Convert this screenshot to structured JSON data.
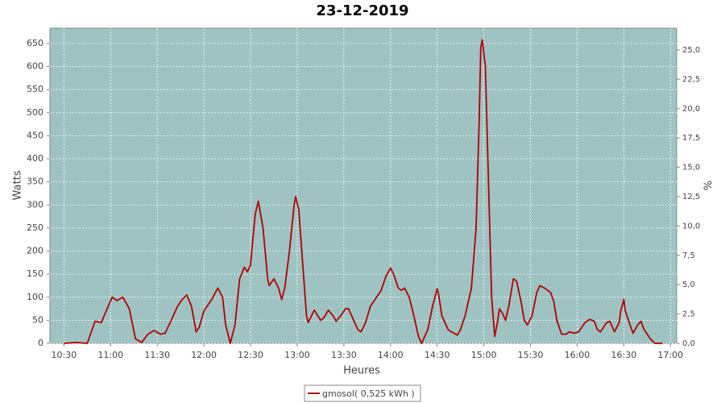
{
  "chart_data": {
    "type": "line",
    "title": "23-12-2019",
    "xlabel": "Heures",
    "ylabel": "Watts",
    "y2label": "%",
    "x": [
      "10:30",
      "10:38",
      "10:45",
      "10:50",
      "10:54",
      "11:01",
      "11:04",
      "11:08",
      "11:12",
      "11:16",
      "11:20",
      "11:24",
      "11:28",
      "11:32",
      "11:35",
      "11:39",
      "11:43",
      "11:46",
      "11:49",
      "11:52",
      "11:55",
      "11:57",
      "12:00",
      "12:03",
      "12:05",
      "12:09",
      "12:12",
      "12:14",
      "12:17",
      "12:20",
      "12:23",
      "12:26",
      "12:28",
      "12:30",
      "12:33",
      "12:35",
      "12:38",
      "12:41",
      "12:42",
      "12:45",
      "12:48",
      "12:50",
      "12:52",
      "12:55",
      "12:58",
      "12:59",
      "13:01",
      "13:04",
      "13:06",
      "13:07",
      "13:11",
      "13:15",
      "13:17",
      "13:20",
      "13:23",
      "13:25",
      "13:28",
      "13:31",
      "13:33",
      "13:35",
      "13:39",
      "13:41",
      "13:44",
      "13:47",
      "13:51",
      "13:54",
      "13:57",
      "14:00",
      "14:02",
      "14:05",
      "14:07",
      "14:09",
      "14:12",
      "14:15",
      "14:18",
      "14:20",
      "14:24",
      "14:27",
      "14:30",
      "14:31",
      "14:33",
      "14:37",
      "14:39",
      "14:43",
      "14:45",
      "14:48",
      "14:52",
      "14:55",
      "14:57",
      "14:58",
      "14:59",
      "15:01",
      "15:03",
      "15:05",
      "15:07",
      "15:09",
      "15:10",
      "15:12",
      "15:14",
      "15:16",
      "15:19",
      "15:21",
      "15:24",
      "15:26",
      "15:28",
      "15:31",
      "15:34",
      "15:36",
      "15:39",
      "15:43",
      "15:45",
      "15:47",
      "15:50",
      "15:53",
      "15:55",
      "15:58",
      "16:01",
      "16:05",
      "16:08",
      "16:11",
      "16:13",
      "16:15",
      "16:19",
      "16:21",
      "16:24",
      "16:27",
      "16:28",
      "16:30",
      "16:31",
      "16:34",
      "16:36",
      "16:39",
      "16:41",
      "16:43",
      "16:47",
      "16:50",
      "16:55"
    ],
    "series": [
      {
        "name": "gmosol( 0,525 kWh )",
        "color": "#b00000",
        "values": [
          0,
          2,
          0,
          48,
          45,
          100,
          93,
          100,
          75,
          10,
          2,
          20,
          28,
          20,
          22,
          50,
          80,
          95,
          105,
          80,
          25,
          35,
          70,
          85,
          95,
          120,
          100,
          40,
          0,
          40,
          140,
          165,
          155,
          170,
          280,
          308,
          250,
          140,
          125,
          140,
          120,
          95,
          120,
          200,
          300,
          318,
          290,
          150,
          60,
          45,
          72,
          50,
          55,
          72,
          60,
          48,
          60,
          75,
          75,
          60,
          30,
          25,
          45,
          80,
          100,
          115,
          145,
          163,
          150,
          120,
          115,
          120,
          100,
          60,
          15,
          0,
          30,
          80,
          118,
          105,
          60,
          30,
          25,
          18,
          30,
          60,
          120,
          250,
          480,
          640,
          658,
          600,
          350,
          100,
          15,
          50,
          75,
          65,
          50,
          80,
          140,
          135,
          90,
          50,
          40,
          60,
          110,
          125,
          120,
          110,
          90,
          50,
          20,
          20,
          25,
          22,
          25,
          45,
          52,
          48,
          30,
          25,
          45,
          48,
          25,
          45,
          70,
          95,
          70,
          40,
          22,
          40,
          48,
          30,
          10,
          0,
          0
        ]
      }
    ],
    "xlim": [
      "10:21",
      "17:04"
    ],
    "xticks": [
      "10:30",
      "11:00",
      "11:30",
      "12:00",
      "12:30",
      "13:00",
      "13:30",
      "14:00",
      "14:30",
      "15:00",
      "15:30",
      "16:00",
      "16:30",
      "17:00"
    ],
    "ylim": [
      0,
      683
    ],
    "yticks": [
      0,
      50,
      100,
      150,
      200,
      250,
      300,
      350,
      400,
      450,
      500,
      550,
      600,
      650
    ],
    "y2lim": [
      0,
      26.85
    ],
    "y2ticks": [
      {
        "value": 0,
        "label": "0,0"
      },
      {
        "value": 2.5,
        "label": "2,5"
      },
      {
        "value": 5,
        "label": "5,0"
      },
      {
        "value": 7.5,
        "label": "7,5"
      },
      {
        "value": 10,
        "label": "10,0"
      },
      {
        "value": 12.5,
        "label": "12,5"
      },
      {
        "value": 15,
        "label": "15,0"
      },
      {
        "value": 17.5,
        "label": "17,5"
      },
      {
        "value": 20,
        "label": "20,0"
      },
      {
        "value": 22.5,
        "label": "22,5"
      },
      {
        "value": 25,
        "label": "25,0"
      }
    ],
    "grid": true,
    "legend": "bottom",
    "background": "#9fc3c3"
  }
}
